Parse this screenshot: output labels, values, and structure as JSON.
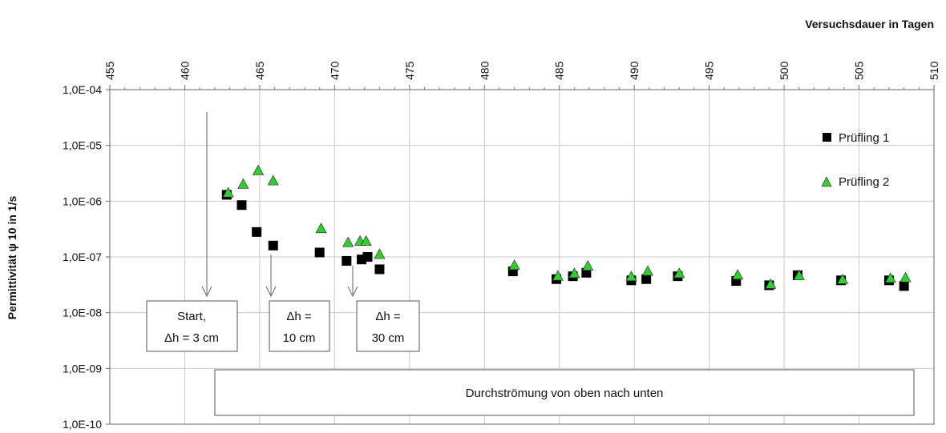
{
  "chart_data": {
    "type": "scatter",
    "xlabel": "Versuchsdauer in Tagen",
    "ylabel": "Permittivität  ψ 10 in 1/s",
    "xlim": [
      455,
      510
    ],
    "ylim": [
      1e-10,
      0.0001
    ],
    "y_scale": "log",
    "x_axis_position": "top",
    "grid": true,
    "legend_position": "right",
    "x_ticks": [
      455,
      460,
      465,
      470,
      475,
      480,
      485,
      490,
      495,
      500,
      505,
      510
    ],
    "x_tick_labels": [
      "455",
      "460",
      "465",
      "470",
      "475",
      "480",
      "485",
      "490",
      "495",
      "500",
      "505",
      "510"
    ],
    "y_ticks": [
      1e-10,
      1e-09,
      1e-08,
      1e-07,
      1e-06,
      1e-05,
      0.0001
    ],
    "y_tick_labels": [
      "1,0E-10",
      "1,0E-09",
      "1,0E-08",
      "1,0E-07",
      "1,0E-06",
      "1,0E-05",
      "1,0E-04"
    ],
    "series": [
      {
        "name": "Prüfling 1",
        "marker": "square",
        "color": "#000000",
        "points": [
          [
            462.8,
            1.3e-06
          ],
          [
            463.8,
            8.5e-07
          ],
          [
            464.8,
            2.8e-07
          ],
          [
            465.9,
            1.6e-07
          ],
          [
            469.0,
            1.2e-07
          ],
          [
            470.8,
            8.5e-08
          ],
          [
            471.8,
            9e-08
          ],
          [
            472.2,
            1e-07
          ],
          [
            473.0,
            6e-08
          ],
          [
            481.9,
            5.5e-08
          ],
          [
            484.8,
            4e-08
          ],
          [
            485.9,
            4.5e-08
          ],
          [
            486.8,
            5.2e-08
          ],
          [
            489.8,
            3.8e-08
          ],
          [
            490.8,
            4e-08
          ],
          [
            492.9,
            4.5e-08
          ],
          [
            496.8,
            3.7e-08
          ],
          [
            499.0,
            3.1e-08
          ],
          [
            500.9,
            4.7e-08
          ],
          [
            503.8,
            3.8e-08
          ],
          [
            507.0,
            3.8e-08
          ],
          [
            508.0,
            3e-08
          ]
        ]
      },
      {
        "name": "Prüfling 2",
        "marker": "triangle",
        "color": "#33cc33",
        "points": [
          [
            462.9,
            1.4e-06
          ],
          [
            463.9,
            2e-06
          ],
          [
            464.9,
            3.5e-06
          ],
          [
            465.9,
            2.3e-06
          ],
          [
            469.1,
            3.2e-07
          ],
          [
            470.9,
            1.8e-07
          ],
          [
            471.7,
            1.9e-07
          ],
          [
            472.1,
            1.9e-07
          ],
          [
            473.0,
            1.1e-07
          ],
          [
            482.0,
            7e-08
          ],
          [
            484.9,
            4.5e-08
          ],
          [
            486.0,
            5e-08
          ],
          [
            486.9,
            6.8e-08
          ],
          [
            489.8,
            4.4e-08
          ],
          [
            490.9,
            5.5e-08
          ],
          [
            493.0,
            5e-08
          ],
          [
            496.9,
            4.7e-08
          ],
          [
            499.1,
            3.2e-08
          ],
          [
            501.0,
            4.6e-08
          ],
          [
            503.9,
            3.9e-08
          ],
          [
            507.1,
            4.1e-08
          ],
          [
            508.1,
            4.2e-08
          ]
        ]
      }
    ],
    "annotations": [
      {
        "lines": [
          "Start,",
          "Δh = 3 cm"
        ],
        "arrow_x": 461.5
      },
      {
        "lines": [
          "Δh =",
          "10 cm"
        ],
        "arrow_x": 466.2
      },
      {
        "lines": [
          "Δh =",
          "30 cm"
        ],
        "arrow_x": 471.2
      }
    ],
    "banner_text": "Durchströmung von oben nach unten"
  }
}
